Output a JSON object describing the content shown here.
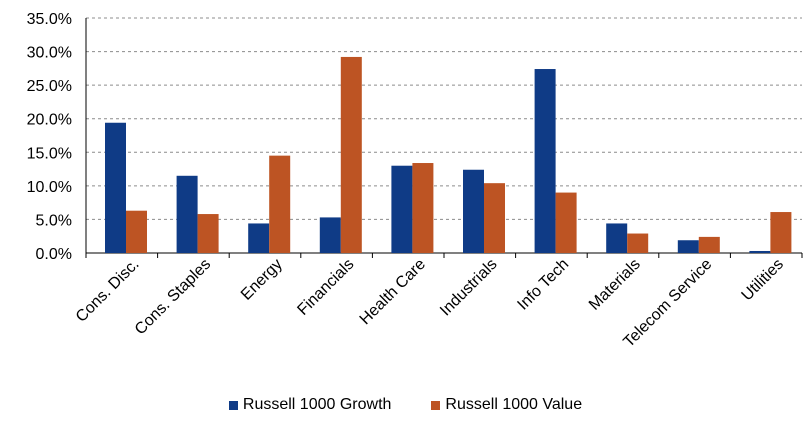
{
  "chart_data": {
    "type": "bar",
    "title": "",
    "xlabel": "",
    "ylabel": "",
    "ylim": [
      0,
      35
    ],
    "y_ticks": [
      "0.0%",
      "5.0%",
      "10.0%",
      "15.0%",
      "20.0%",
      "25.0%",
      "30.0%",
      "35.0%"
    ],
    "grid": "horizontal dashed",
    "legend_position": "bottom",
    "categories": [
      "Cons. Disc.",
      "Cons. Staples",
      "Energy",
      "Financials",
      "Health Care",
      "Industrials",
      "Info Tech",
      "Materials",
      "Telecom Service",
      "Utilities"
    ],
    "series": [
      {
        "name": "Russell 1000 Growth",
        "color": "#0f3b86",
        "values": [
          19.4,
          11.5,
          4.4,
          5.3,
          13.0,
          12.4,
          27.4,
          4.4,
          1.9,
          0.3
        ]
      },
      {
        "name": "Russell 1000 Value",
        "color": "#bd5423",
        "values": [
          6.3,
          5.8,
          14.5,
          29.2,
          13.4,
          10.4,
          9.0,
          2.9,
          2.4,
          6.1
        ]
      }
    ]
  }
}
